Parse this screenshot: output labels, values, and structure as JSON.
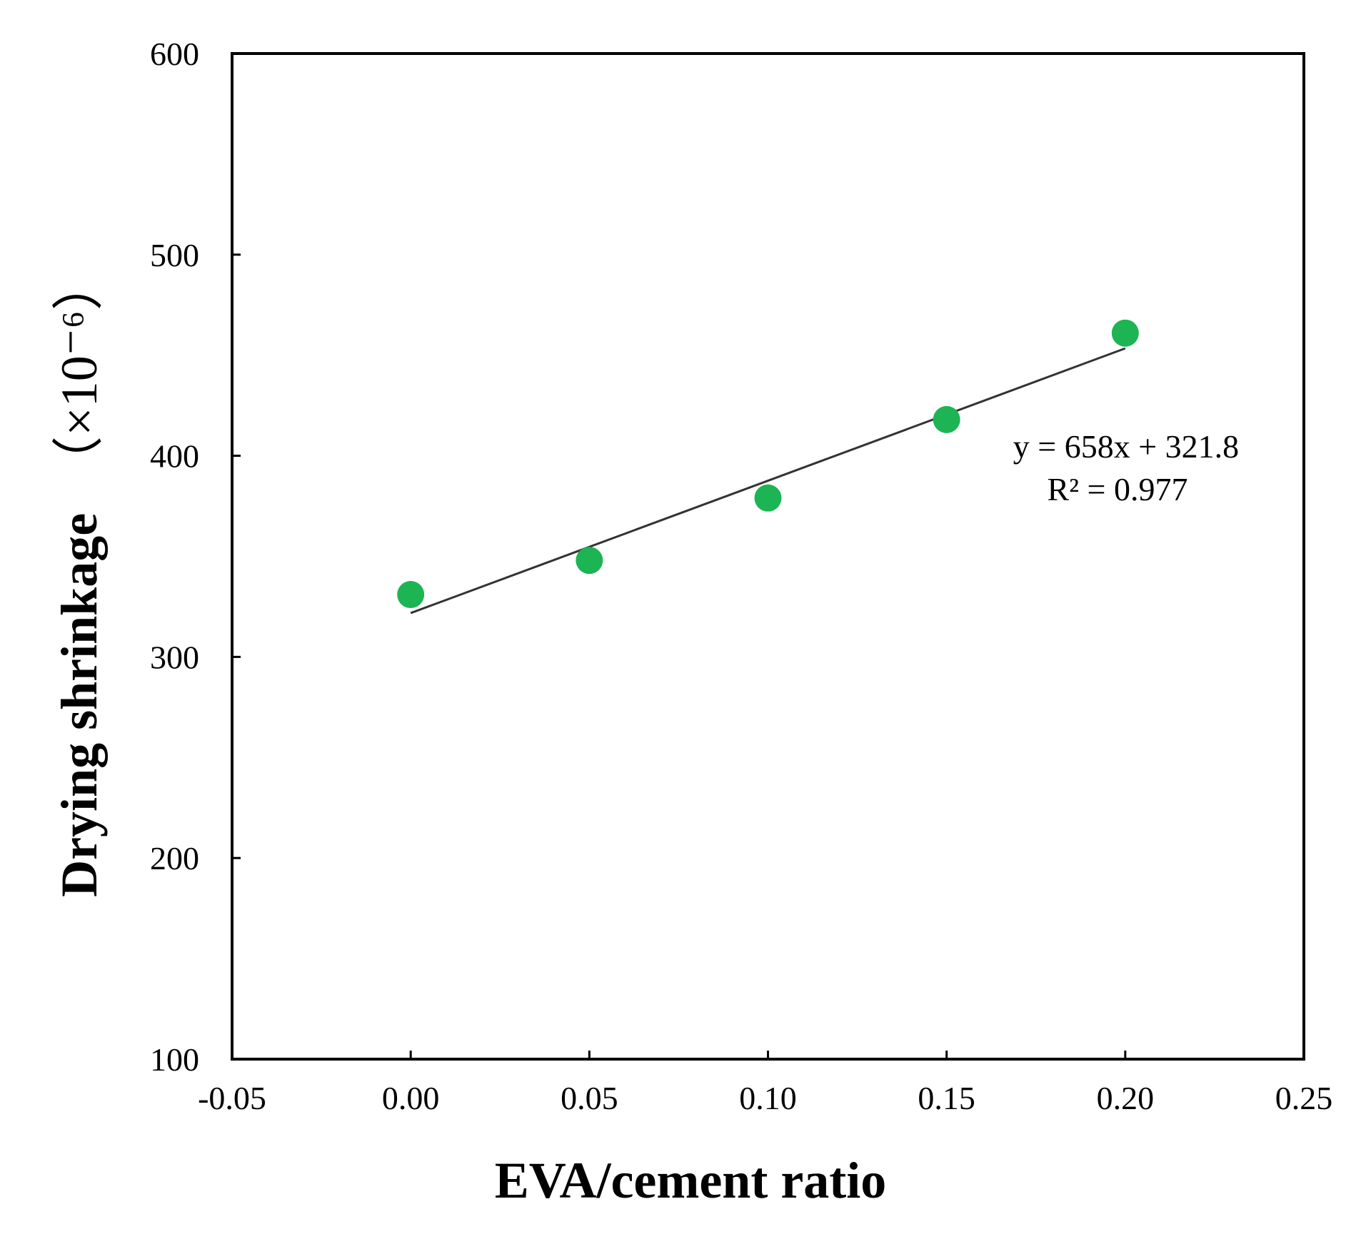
{
  "chart_data": {
    "type": "scatter",
    "title": "",
    "xlabel": "EVA/cement ratio",
    "ylabel": "Drying shrinkage",
    "ylabel_unit": "（×10⁻⁶）",
    "xlim": [
      -0.05,
      0.25
    ],
    "ylim": [
      100,
      600
    ],
    "x_ticks": [
      "-0.05",
      "0.00",
      "0.05",
      "0.10",
      "0.15",
      "0.20",
      "0.25"
    ],
    "y_ticks": [
      "100",
      "200",
      "300",
      "400",
      "500",
      "600"
    ],
    "grid": false,
    "legend": false,
    "marker_color": "#1db454",
    "line_color": "#333333",
    "series": [
      {
        "name": "Drying shrinkage",
        "x": [
          0.0,
          0.05,
          0.1,
          0.15,
          0.2
        ],
        "y": [
          331,
          348,
          379,
          418,
          461
        ]
      }
    ],
    "trendline": {
      "slope": 658,
      "intercept": 321.8,
      "x_range": [
        0.0,
        0.2
      ],
      "equation": "y = 658x + 321.8",
      "r_squared": "R² = 0.977"
    }
  }
}
